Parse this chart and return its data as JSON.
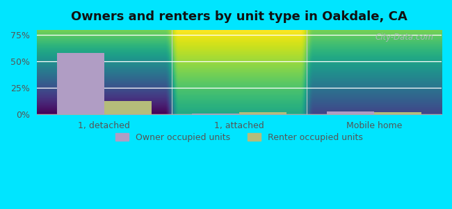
{
  "title": "Owners and renters by unit type in Oakdale, CA",
  "categories": [
    "1, detached",
    "1, attached",
    "Mobile home"
  ],
  "owner_values": [
    58,
    1,
    3
  ],
  "renter_values": [
    13,
    2,
    2
  ],
  "owner_color": "#b09dc4",
  "renter_color": "#b5bc7a",
  "background_outer": "#00e5ff",
  "yticks": [
    0,
    25,
    50,
    75
  ],
  "ylim": [
    0,
    80
  ],
  "bar_width": 0.35,
  "watermark": "City-Data.com",
  "legend_owner": "Owner occupied units",
  "legend_renter": "Renter occupied units",
  "title_fontsize": 13,
  "tick_fontsize": 9,
  "legend_fontsize": 9
}
